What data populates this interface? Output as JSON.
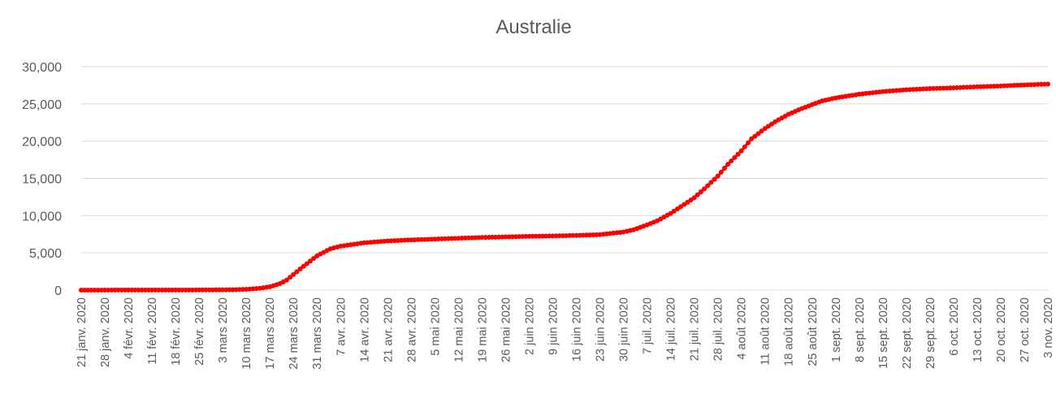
{
  "chart_data": {
    "type": "line",
    "title": "Australie",
    "xlabel": "",
    "ylabel": "",
    "ylim": [
      0,
      30000
    ],
    "yticks": [
      0,
      5000,
      10000,
      15000,
      20000,
      25000,
      30000
    ],
    "ytick_labels": [
      "0",
      "5,000",
      "10,000",
      "15,000",
      "20,000",
      "25,000",
      "30,000"
    ],
    "grid": true,
    "legend": "none",
    "x_start": "2020-01-21",
    "x_end": "2020-11-03",
    "x_tick_labels": [
      "21 janv. 2020",
      "28 janv. 2020",
      "4 févr. 2020",
      "11 févr. 2020",
      "18 févr. 2020",
      "25 févr. 2020",
      "3 mars 2020",
      "10 mars 2020",
      "17 mars 2020",
      "24 mars 2020",
      "31 mars 2020",
      "7 avr. 2020",
      "14 avr. 2020",
      "21 avr. 2020",
      "28 avr. 2020",
      "5 mai 2020",
      "12 mai 2020",
      "19 mai 2020",
      "26 mai 2020",
      "2 juin 2020",
      "9 juin 2020",
      "16 juin 2020",
      "23 juin 2020",
      "30 juin 2020",
      "7 juil. 2020",
      "14 juil. 2020",
      "21 juil. 2020",
      "28 juil. 2020",
      "4 août 2020",
      "11 août 2020",
      "18 août 2020",
      "25 août 2020",
      "1 sept. 2020",
      "8 sept. 2020",
      "15 sept. 2020",
      "22 sept. 2020",
      "29 sept. 2020",
      "6 oct. 2020",
      "13 oct. 2020",
      "20 oct. 2020",
      "27 oct. 2020",
      "3 nov. 2020"
    ],
    "series": [
      {
        "color": "#ff0000",
        "points": [
          [
            "2020-01-21",
            0
          ],
          [
            "2020-01-28",
            5
          ],
          [
            "2020-02-04",
            12
          ],
          [
            "2020-02-11",
            15
          ],
          [
            "2020-02-18",
            15
          ],
          [
            "2020-02-25",
            22
          ],
          [
            "2020-03-03",
            40
          ],
          [
            "2020-03-07",
            65
          ],
          [
            "2020-03-10",
            110
          ],
          [
            "2020-03-14",
            240
          ],
          [
            "2020-03-17",
            450
          ],
          [
            "2020-03-20",
            870
          ],
          [
            "2020-03-22",
            1350
          ],
          [
            "2020-03-24",
            2100
          ],
          [
            "2020-03-27",
            3200
          ],
          [
            "2020-03-31",
            4600
          ],
          [
            "2020-04-04",
            5550
          ],
          [
            "2020-04-07",
            5900
          ],
          [
            "2020-04-14",
            6350
          ],
          [
            "2020-04-21",
            6600
          ],
          [
            "2020-04-28",
            6740
          ],
          [
            "2020-05-05",
            6850
          ],
          [
            "2020-05-12",
            6960
          ],
          [
            "2020-05-19",
            7070
          ],
          [
            "2020-05-26",
            7140
          ],
          [
            "2020-06-02",
            7220
          ],
          [
            "2020-06-09",
            7270
          ],
          [
            "2020-06-16",
            7340
          ],
          [
            "2020-06-23",
            7450
          ],
          [
            "2020-06-30",
            7800
          ],
          [
            "2020-07-03",
            8100
          ],
          [
            "2020-07-07",
            8750
          ],
          [
            "2020-07-10",
            9300
          ],
          [
            "2020-07-14",
            10300
          ],
          [
            "2020-07-17",
            11200
          ],
          [
            "2020-07-21",
            12400
          ],
          [
            "2020-07-24",
            13600
          ],
          [
            "2020-07-28",
            15300
          ],
          [
            "2020-07-31",
            16900
          ],
          [
            "2020-08-04",
            18700
          ],
          [
            "2020-08-07",
            20300
          ],
          [
            "2020-08-11",
            21700
          ],
          [
            "2020-08-14",
            22600
          ],
          [
            "2020-08-18",
            23600
          ],
          [
            "2020-08-21",
            24200
          ],
          [
            "2020-08-25",
            24900
          ],
          [
            "2020-08-28",
            25400
          ],
          [
            "2020-09-01",
            25800
          ],
          [
            "2020-09-08",
            26300
          ],
          [
            "2020-09-15",
            26650
          ],
          [
            "2020-09-22",
            26900
          ],
          [
            "2020-09-29",
            27050
          ],
          [
            "2020-10-06",
            27150
          ],
          [
            "2020-10-13",
            27300
          ],
          [
            "2020-10-20",
            27400
          ],
          [
            "2020-10-27",
            27550
          ],
          [
            "2020-11-03",
            27650
          ]
        ]
      }
    ]
  }
}
